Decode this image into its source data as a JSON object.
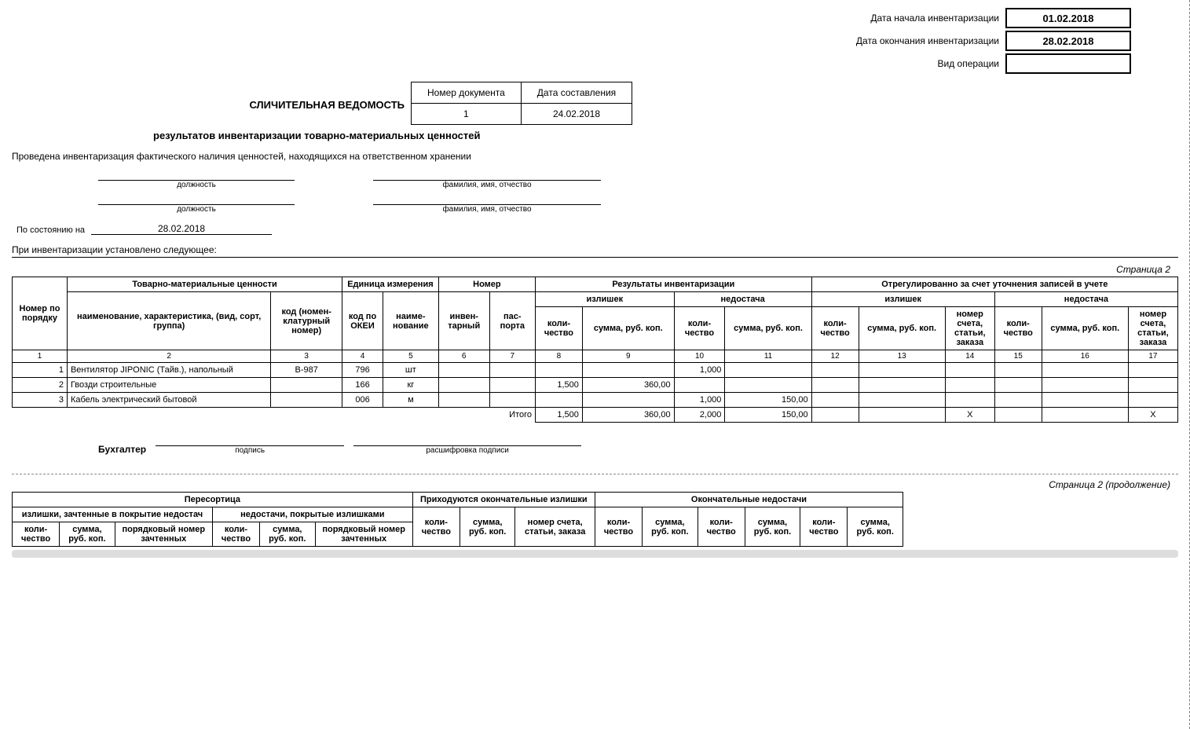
{
  "header": {
    "start_label": "Дата начала инвентаризации",
    "start_value": "01.02.2018",
    "end_label": "Дата окончания инвентаризации",
    "end_value": "28.02.2018",
    "op_label": "Вид операции",
    "op_value": ""
  },
  "doc": {
    "title_main": "СЛИЧИТЕЛЬНАЯ ВЕДОМОСТЬ",
    "num_header": "Номер документа",
    "date_header": "Дата составления",
    "num_value": "1",
    "date_value": "24.02.2018",
    "subtitle": "результатов инвентаризации товарно-материальных ценностей"
  },
  "intro": "Проведена инвентаризация фактического наличия ценностей, находящихся на ответственном хранении",
  "sign_captions": {
    "position": "должность",
    "fio": "фамилия, имя, отчество"
  },
  "state": {
    "label": "По состоянию на",
    "value": "28.02.2018"
  },
  "found": "При инвентаризации установлено следующее:",
  "page_label1": "Страница 2",
  "table1": {
    "headers": {
      "num": "Номер по порядку",
      "tmc": "Товарно-материальные ценности",
      "unit": "Единица измерения",
      "number_h": "Номер",
      "results": "Результаты инвентаризации",
      "adjusted": "Отрегулированно за счет уточнения записей в учете",
      "name": "наименование, характеристика, (вид, сорт, группа)",
      "code": "код (номен-клатурный номер)",
      "okei": "код по ОКЕИ",
      "unit_name": "наиме-нование",
      "inv": "инвен-тарный",
      "pass": "пас-порта",
      "surplus": "излишек",
      "shortage": "недостача",
      "qty": "коли-чество",
      "sum": "сумма, руб. коп.",
      "acc": "номер счета, статьи, заказа"
    },
    "cols": [
      "1",
      "2",
      "3",
      "4",
      "5",
      "6",
      "7",
      "8",
      "9",
      "10",
      "11",
      "12",
      "13",
      "14",
      "15",
      "16",
      "17"
    ],
    "rows": [
      {
        "n": "1",
        "name": "Вентилятор JIPONIC (Тайв.), напольный",
        "code": "В-987",
        "okei": "796",
        "unit": "шт",
        "inv": "",
        "pass": "",
        "q8": "",
        "s9": "",
        "q10": "1,000",
        "s11": "",
        "q12": "",
        "s13": "",
        "a14": "",
        "q15": "",
        "s16": "",
        "a17": ""
      },
      {
        "n": "2",
        "name": "Гвозди строительные",
        "code": "",
        "okei": "166",
        "unit": "кг",
        "inv": "",
        "pass": "",
        "q8": "1,500",
        "s9": "360,00",
        "q10": "",
        "s11": "",
        "q12": "",
        "s13": "",
        "a14": "",
        "q15": "",
        "s16": "",
        "a17": ""
      },
      {
        "n": "3",
        "name": "Кабель электрический бытовой",
        "code": "",
        "okei": "006",
        "unit": "м",
        "inv": "",
        "pass": "",
        "q8": "",
        "s9": "",
        "q10": "1,000",
        "s11": "150,00",
        "q12": "",
        "s13": "",
        "a14": "",
        "q15": "",
        "s16": "",
        "a17": ""
      }
    ],
    "total_label": "Итого",
    "totals": {
      "q8": "1,500",
      "s9": "360,00",
      "q10": "2,000",
      "s11": "150,00",
      "q12": "",
      "s13": "",
      "a14": "Х",
      "q15": "",
      "s16": "",
      "a17": "Х"
    }
  },
  "accountant": {
    "label": "Бухгалтер",
    "caption1": "подпись",
    "caption2": "расшифровка подписи"
  },
  "page_label2": "Страница 2 (продолжение)",
  "table2": {
    "headers": {
      "resort": "Пересортица",
      "final_surplus": "Приходуются окончательные излишки",
      "final_shortage": "Окончательные недостачи",
      "surplus_credited": "излишки, зачтенные в покрытие недостач",
      "shortage_covered": "недостачи, покрытые излишками",
      "qty": "коли-чество",
      "sum": "сумма, руб. коп.",
      "seq": "порядковый номер зачтенных",
      "acc": "номер счета, статьи, заказа"
    }
  },
  "colors": {
    "border": "#000000",
    "text": "#000000",
    "bg": "#ffffff",
    "dash": "#888888",
    "scroll": "#dddddd"
  }
}
